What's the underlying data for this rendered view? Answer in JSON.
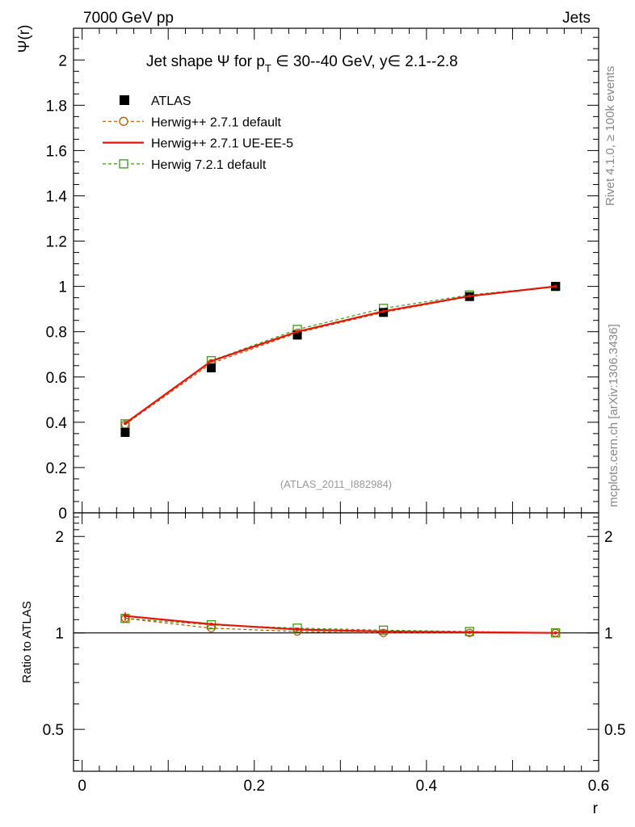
{
  "header": {
    "left": "7000 GeV pp",
    "right": "Jets"
  },
  "side_text": {
    "top": "Rivet 4.1.0, ≥ 100k events",
    "bottom": "mcplots.cern.ch [arXiv:1306.3436]"
  },
  "watermark": "(ATLAS_2011_I882984)",
  "title": {
    "prefix": "Jet shape Ψ for p",
    "sub": "T",
    "suffix": " ∈ 30--40 GeV, y∈ 2.1--2.8"
  },
  "colors": {
    "data": "#000000",
    "herwigpp_default": "#b35900",
    "herwigpp_ueee5": "#e8140a",
    "herwig7_default": "#3d9a12"
  },
  "chart_data": [
    {
      "type": "line",
      "panel": "main",
      "title": "Jet shape Ψ for pT ∈ 30--40 GeV, y∈ 2.1--2.8",
      "xlabel": "r",
      "ylabel": "Ψ(r)",
      "xlim": [
        -0.01,
        0.6
      ],
      "ylim": [
        0,
        2.14
      ],
      "y_ticks": [
        0,
        0.2,
        0.4,
        0.6,
        0.8,
        1,
        1.2,
        1.4,
        1.6,
        1.8,
        2
      ],
      "y_tick_labels": [
        "0",
        "0.2",
        "0.4",
        "0.6",
        "0.8",
        "1",
        "1.2",
        "1.4",
        "1.6",
        "1.8",
        "2"
      ],
      "x": [
        0.05,
        0.15,
        0.25,
        0.35,
        0.45,
        0.55
      ],
      "series": [
        {
          "name": "ATLAS",
          "key": "data",
          "style": "square-filled",
          "values": [
            0.355,
            0.64,
            0.785,
            0.885,
            0.955,
            1.0
          ]
        },
        {
          "name": "Herwig++ 2.7.1 default",
          "key": "herwigpp_default",
          "style": "dashed-circle",
          "values": [
            0.39,
            0.66,
            0.795,
            0.885,
            0.955,
            1.0
          ]
        },
        {
          "name": "Herwig++ 2.7.1 UE-EE-5",
          "key": "herwigpp_ueee5",
          "style": "solid",
          "values": [
            0.395,
            0.67,
            0.8,
            0.89,
            0.957,
            1.0
          ]
        },
        {
          "name": "Herwig 7.2.1 default",
          "key": "herwig7_default",
          "style": "dashed-square",
          "values": [
            0.393,
            0.672,
            0.81,
            0.903,
            0.962,
            1.0
          ]
        }
      ],
      "legend": "top-left"
    },
    {
      "type": "line",
      "panel": "ratio",
      "xlabel": "r",
      "ylabel": "Ratio to ATLAS",
      "xlim": [
        -0.01,
        0.6
      ],
      "ylim": [
        0.37,
        2.37
      ],
      "y_tick_labels": [
        "0.5",
        "1",
        "2"
      ],
      "x_ticks": [
        0,
        0.2,
        0.4,
        0.6
      ],
      "x_tick_labels": [
        "0",
        "0.2",
        "0.4",
        "0.6"
      ],
      "x": [
        0.05,
        0.15,
        0.25,
        0.35,
        0.45,
        0.55
      ],
      "series": [
        {
          "name": "Herwig++ 2.7.1 default",
          "key": "herwigpp_default",
          "style": "dashed-circle",
          "values": [
            1.11,
            1.035,
            1.01,
            1.0,
            1.0,
            1.0
          ]
        },
        {
          "name": "Herwig++ 2.7.1 UE-EE-5",
          "key": "herwigpp_ueee5",
          "style": "solid",
          "values": [
            1.13,
            1.065,
            1.025,
            1.01,
            1.005,
            1.0
          ]
        },
        {
          "name": "Herwig 7.2.1 default",
          "key": "herwig7_default",
          "style": "dashed-square",
          "values": [
            1.11,
            1.06,
            1.035,
            1.02,
            1.01,
            1.0
          ]
        }
      ]
    }
  ]
}
